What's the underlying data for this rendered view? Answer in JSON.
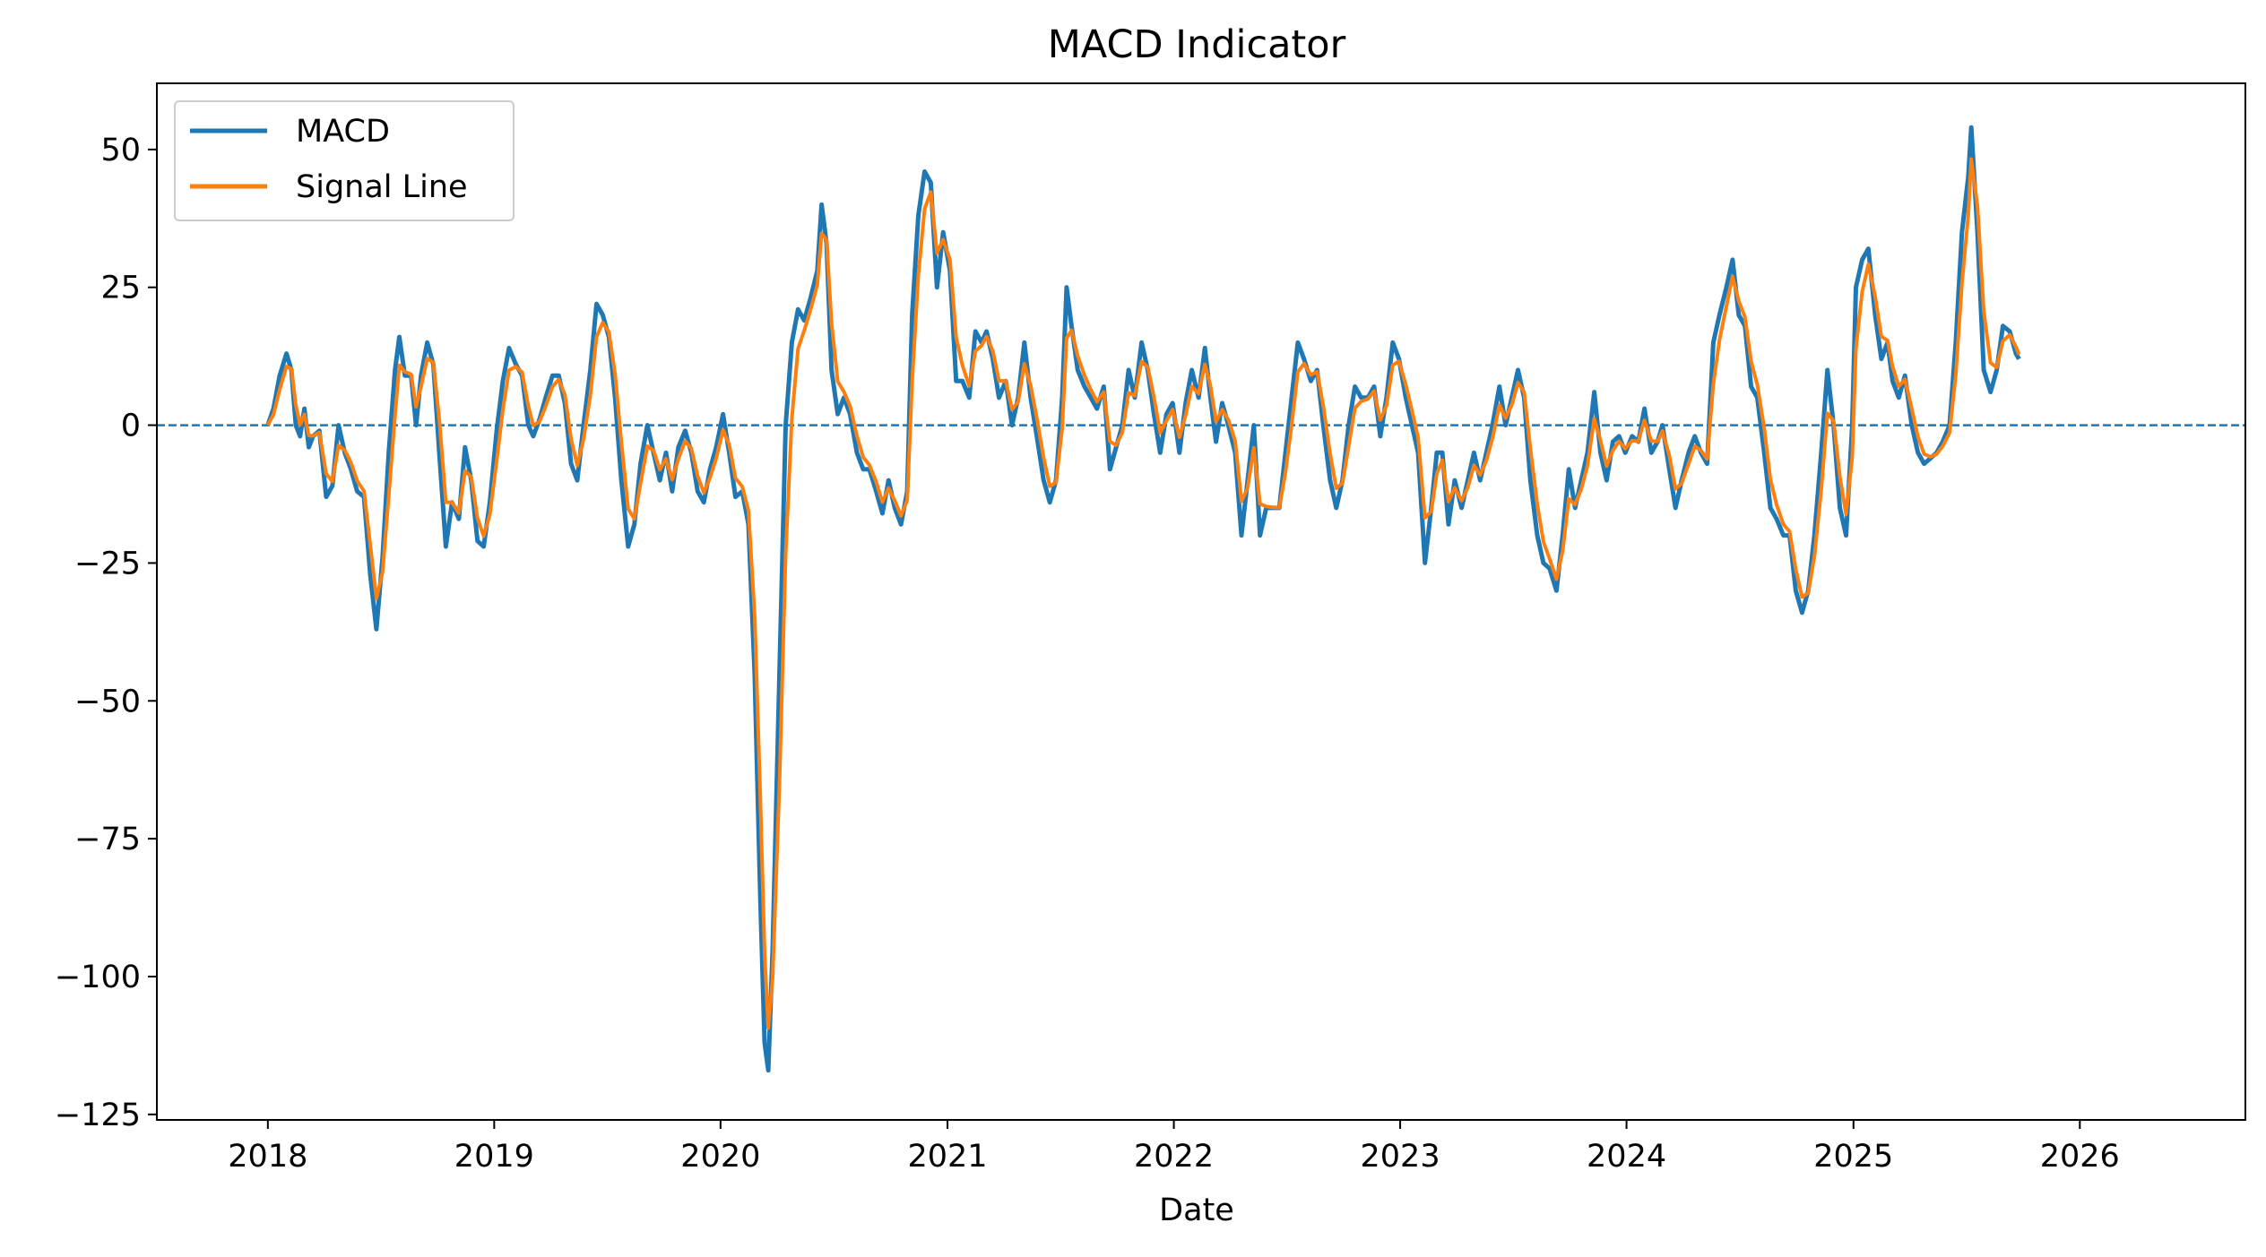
{
  "chart_data": {
    "type": "line",
    "title": "MACD Indicator",
    "xlabel": "Date",
    "ylabel": "",
    "x_tick_labels": [
      "2018",
      "2019",
      "2020",
      "2021",
      "2022",
      "2023",
      "2024",
      "2025",
      "2026"
    ],
    "y_tick_labels": [
      "50",
      "25",
      "0",
      "−25",
      "−50",
      "−75",
      "−100",
      "−125"
    ],
    "y_ticks": [
      50,
      25,
      0,
      -25,
      -50,
      -75,
      -100,
      -125
    ],
    "xlim": [
      "2017-07-06",
      "2026-09-25"
    ],
    "ylim": [
      -126,
      62
    ],
    "grid": false,
    "legend_position": "upper-left",
    "reference_line": {
      "y": 0,
      "style": "dashed",
      "color": "#1f77b4"
    },
    "series": [
      {
        "name": "MACD",
        "color": "#1f77b4",
        "points": [
          [
            "2018-01-01",
            0
          ],
          [
            "2018-01-10",
            3
          ],
          [
            "2018-01-20",
            9
          ],
          [
            "2018-01-31",
            13
          ],
          [
            "2018-02-08",
            10
          ],
          [
            "2018-02-15",
            0
          ],
          [
            "2018-02-22",
            -2
          ],
          [
            "2018-03-01",
            3
          ],
          [
            "2018-03-08",
            -4
          ],
          [
            "2018-03-15",
            -2
          ],
          [
            "2018-03-25",
            -1
          ],
          [
            "2018-04-05",
            -13
          ],
          [
            "2018-04-15",
            -11
          ],
          [
            "2018-04-25",
            0
          ],
          [
            "2018-05-05",
            -5
          ],
          [
            "2018-05-15",
            -8
          ],
          [
            "2018-05-25",
            -12
          ],
          [
            "2018-06-05",
            -13
          ],
          [
            "2018-06-15",
            -27
          ],
          [
            "2018-06-25",
            -37
          ],
          [
            "2018-07-05",
            -24
          ],
          [
            "2018-07-15",
            -5
          ],
          [
            "2018-07-25",
            10
          ],
          [
            "2018-08-01",
            16
          ],
          [
            "2018-08-10",
            9
          ],
          [
            "2018-08-20",
            9
          ],
          [
            "2018-08-28",
            0
          ],
          [
            "2018-09-05",
            9
          ],
          [
            "2018-09-15",
            15
          ],
          [
            "2018-09-25",
            11
          ],
          [
            "2018-10-05",
            -6
          ],
          [
            "2018-10-15",
            -22
          ],
          [
            "2018-10-25",
            -14
          ],
          [
            "2018-11-05",
            -17
          ],
          [
            "2018-11-15",
            -4
          ],
          [
            "2018-11-25",
            -10
          ],
          [
            "2018-12-05",
            -21
          ],
          [
            "2018-12-15",
            -22
          ],
          [
            "2018-12-25",
            -14
          ],
          [
            "2019-01-05",
            -1
          ],
          [
            "2019-01-15",
            8
          ],
          [
            "2019-01-25",
            14
          ],
          [
            "2019-02-05",
            11
          ],
          [
            "2019-02-15",
            9
          ],
          [
            "2019-02-25",
            0
          ],
          [
            "2019-03-05",
            -2
          ],
          [
            "2019-03-15",
            1
          ],
          [
            "2019-03-25",
            5
          ],
          [
            "2019-04-05",
            9
          ],
          [
            "2019-04-15",
            9
          ],
          [
            "2019-04-25",
            4
          ],
          [
            "2019-05-05",
            -7
          ],
          [
            "2019-05-15",
            -10
          ],
          [
            "2019-05-25",
            0
          ],
          [
            "2019-06-05",
            10
          ],
          [
            "2019-06-15",
            22
          ],
          [
            "2019-06-25",
            20
          ],
          [
            "2019-07-05",
            16
          ],
          [
            "2019-07-15",
            5
          ],
          [
            "2019-07-25",
            -10
          ],
          [
            "2019-08-05",
            -22
          ],
          [
            "2019-08-15",
            -18
          ],
          [
            "2019-08-25",
            -7
          ],
          [
            "2019-09-05",
            0
          ],
          [
            "2019-09-15",
            -5
          ],
          [
            "2019-09-25",
            -10
          ],
          [
            "2019-10-05",
            -5
          ],
          [
            "2019-10-15",
            -12
          ],
          [
            "2019-10-25",
            -4
          ],
          [
            "2019-11-05",
            -1
          ],
          [
            "2019-11-15",
            -5
          ],
          [
            "2019-11-25",
            -12
          ],
          [
            "2019-12-05",
            -14
          ],
          [
            "2019-12-15",
            -8
          ],
          [
            "2019-12-25",
            -4
          ],
          [
            "2020-01-05",
            2
          ],
          [
            "2020-01-15",
            -5
          ],
          [
            "2020-01-25",
            -13
          ],
          [
            "2020-02-05",
            -12
          ],
          [
            "2020-02-15",
            -18
          ],
          [
            "2020-02-25",
            -45
          ],
          [
            "2020-03-05",
            -85
          ],
          [
            "2020-03-12",
            -112
          ],
          [
            "2020-03-18",
            -117
          ],
          [
            "2020-03-25",
            -95
          ],
          [
            "2020-04-05",
            -45
          ],
          [
            "2020-04-15",
            0
          ],
          [
            "2020-04-25",
            15
          ],
          [
            "2020-05-05",
            21
          ],
          [
            "2020-05-15",
            19
          ],
          [
            "2020-05-25",
            23
          ],
          [
            "2020-06-05",
            28
          ],
          [
            "2020-06-12",
            40
          ],
          [
            "2020-06-20",
            33
          ],
          [
            "2020-06-28",
            10
          ],
          [
            "2020-07-08",
            2
          ],
          [
            "2020-07-18",
            5
          ],
          [
            "2020-07-28",
            2
          ],
          [
            "2020-08-08",
            -5
          ],
          [
            "2020-08-18",
            -8
          ],
          [
            "2020-08-28",
            -8
          ],
          [
            "2020-09-08",
            -12
          ],
          [
            "2020-09-18",
            -16
          ],
          [
            "2020-09-28",
            -10
          ],
          [
            "2020-10-08",
            -15
          ],
          [
            "2020-10-18",
            -18
          ],
          [
            "2020-10-28",
            -12
          ],
          [
            "2020-11-05",
            20
          ],
          [
            "2020-11-15",
            38
          ],
          [
            "2020-11-25",
            46
          ],
          [
            "2020-12-05",
            44
          ],
          [
            "2020-12-15",
            25
          ],
          [
            "2020-12-25",
            35
          ],
          [
            "2021-01-05",
            28
          ],
          [
            "2021-01-15",
            8
          ],
          [
            "2021-01-25",
            8
          ],
          [
            "2021-02-05",
            5
          ],
          [
            "2021-02-15",
            17
          ],
          [
            "2021-02-25",
            15
          ],
          [
            "2021-03-05",
            17
          ],
          [
            "2021-03-15",
            12
          ],
          [
            "2021-03-25",
            5
          ],
          [
            "2021-04-05",
            8
          ],
          [
            "2021-04-15",
            0
          ],
          [
            "2021-04-25",
            5
          ],
          [
            "2021-05-05",
            15
          ],
          [
            "2021-05-15",
            5
          ],
          [
            "2021-05-25",
            -2
          ],
          [
            "2021-06-05",
            -10
          ],
          [
            "2021-06-15",
            -14
          ],
          [
            "2021-06-25",
            -10
          ],
          [
            "2021-07-05",
            5
          ],
          [
            "2021-07-12",
            25
          ],
          [
            "2021-07-20",
            18
          ],
          [
            "2021-07-30",
            10
          ],
          [
            "2021-08-10",
            7
          ],
          [
            "2021-08-20",
            5
          ],
          [
            "2021-08-30",
            3
          ],
          [
            "2021-09-10",
            7
          ],
          [
            "2021-09-20",
            -8
          ],
          [
            "2021-09-30",
            -4
          ],
          [
            "2021-10-10",
            0
          ],
          [
            "2021-10-20",
            10
          ],
          [
            "2021-10-30",
            5
          ],
          [
            "2021-11-10",
            15
          ],
          [
            "2021-11-20",
            10
          ],
          [
            "2021-11-30",
            2
          ],
          [
            "2021-12-10",
            -5
          ],
          [
            "2021-12-20",
            2
          ],
          [
            "2021-12-30",
            4
          ],
          [
            "2022-01-10",
            -5
          ],
          [
            "2022-01-20",
            4
          ],
          [
            "2022-01-30",
            10
          ],
          [
            "2022-02-10",
            5
          ],
          [
            "2022-02-20",
            14
          ],
          [
            "2022-03-01",
            5
          ],
          [
            "2022-03-10",
            -3
          ],
          [
            "2022-03-20",
            4
          ],
          [
            "2022-03-30",
            0
          ],
          [
            "2022-04-10",
            -5
          ],
          [
            "2022-04-20",
            -20
          ],
          [
            "2022-04-30",
            -10
          ],
          [
            "2022-05-10",
            0
          ],
          [
            "2022-05-20",
            -20
          ],
          [
            "2022-05-30",
            -15
          ],
          [
            "2022-06-10",
            -15
          ],
          [
            "2022-06-20",
            -15
          ],
          [
            "2022-06-30",
            -5
          ],
          [
            "2022-07-10",
            5
          ],
          [
            "2022-07-20",
            15
          ],
          [
            "2022-07-30",
            12
          ],
          [
            "2022-08-10",
            8
          ],
          [
            "2022-08-20",
            10
          ],
          [
            "2022-08-30",
            0
          ],
          [
            "2022-09-10",
            -10
          ],
          [
            "2022-09-20",
            -15
          ],
          [
            "2022-09-30",
            -10
          ],
          [
            "2022-10-10",
            0
          ],
          [
            "2022-10-20",
            7
          ],
          [
            "2022-10-30",
            5
          ],
          [
            "2022-11-10",
            5
          ],
          [
            "2022-11-20",
            7
          ],
          [
            "2022-11-30",
            -2
          ],
          [
            "2022-12-10",
            5
          ],
          [
            "2022-12-20",
            15
          ],
          [
            "2022-12-30",
            12
          ],
          [
            "2023-01-10",
            5
          ],
          [
            "2023-01-20",
            0
          ],
          [
            "2023-01-30",
            -5
          ],
          [
            "2023-02-10",
            -25
          ],
          [
            "2023-02-20",
            -15
          ],
          [
            "2023-03-01",
            -5
          ],
          [
            "2023-03-10",
            -5
          ],
          [
            "2023-03-20",
            -18
          ],
          [
            "2023-03-30",
            -10
          ],
          [
            "2023-04-10",
            -15
          ],
          [
            "2023-04-20",
            -10
          ],
          [
            "2023-04-30",
            -5
          ],
          [
            "2023-05-10",
            -10
          ],
          [
            "2023-05-20",
            -5
          ],
          [
            "2023-05-30",
            0
          ],
          [
            "2023-06-10",
            7
          ],
          [
            "2023-06-20",
            0
          ],
          [
            "2023-06-30",
            5
          ],
          [
            "2023-07-10",
            10
          ],
          [
            "2023-07-20",
            5
          ],
          [
            "2023-07-30",
            -10
          ],
          [
            "2023-08-10",
            -20
          ],
          [
            "2023-08-20",
            -25
          ],
          [
            "2023-08-30",
            -26
          ],
          [
            "2023-09-10",
            -30
          ],
          [
            "2023-09-20",
            -20
          ],
          [
            "2023-09-30",
            -8
          ],
          [
            "2023-10-10",
            -15
          ],
          [
            "2023-10-20",
            -10
          ],
          [
            "2023-10-30",
            -5
          ],
          [
            "2023-11-10",
            6
          ],
          [
            "2023-11-20",
            -5
          ],
          [
            "2023-11-30",
            -10
          ],
          [
            "2023-12-10",
            -3
          ],
          [
            "2023-12-20",
            -2
          ],
          [
            "2023-12-30",
            -5
          ],
          [
            "2024-01-10",
            -2
          ],
          [
            "2024-01-20",
            -3
          ],
          [
            "2024-01-30",
            3
          ],
          [
            "2024-02-10",
            -5
          ],
          [
            "2024-02-20",
            -3
          ],
          [
            "2024-02-28",
            0
          ],
          [
            "2024-03-10",
            -8
          ],
          [
            "2024-03-20",
            -15
          ],
          [
            "2024-03-30",
            -10
          ],
          [
            "2024-04-10",
            -5
          ],
          [
            "2024-04-20",
            -2
          ],
          [
            "2024-04-30",
            -5
          ],
          [
            "2024-05-10",
            -7
          ],
          [
            "2024-05-20",
            15
          ],
          [
            "2024-05-30",
            20
          ],
          [
            "2024-06-10",
            25
          ],
          [
            "2024-06-20",
            30
          ],
          [
            "2024-06-30",
            20
          ],
          [
            "2024-07-10",
            18
          ],
          [
            "2024-07-20",
            7
          ],
          [
            "2024-07-30",
            5
          ],
          [
            "2024-08-10",
            -5
          ],
          [
            "2024-08-20",
            -15
          ],
          [
            "2024-08-30",
            -17
          ],
          [
            "2024-09-10",
            -20
          ],
          [
            "2024-09-20",
            -20
          ],
          [
            "2024-09-30",
            -30
          ],
          [
            "2024-10-10",
            -34
          ],
          [
            "2024-10-20",
            -30
          ],
          [
            "2024-10-30",
            -20
          ],
          [
            "2024-11-10",
            -5
          ],
          [
            "2024-11-20",
            10
          ],
          [
            "2024-11-30",
            0
          ],
          [
            "2024-12-10",
            -15
          ],
          [
            "2024-12-20",
            -20
          ],
          [
            "2024-12-30",
            0
          ],
          [
            "2025-01-05",
            25
          ],
          [
            "2025-01-15",
            30
          ],
          [
            "2025-01-25",
            32
          ],
          [
            "2025-02-05",
            20
          ],
          [
            "2025-02-15",
            12
          ],
          [
            "2025-02-25",
            15
          ],
          [
            "2025-03-05",
            8
          ],
          [
            "2025-03-15",
            5
          ],
          [
            "2025-03-25",
            9
          ],
          [
            "2025-04-05",
            0
          ],
          [
            "2025-04-15",
            -5
          ],
          [
            "2025-04-25",
            -7
          ],
          [
            "2025-05-05",
            -6
          ],
          [
            "2025-05-15",
            -5
          ],
          [
            "2025-05-25",
            -3
          ],
          [
            "2025-06-05",
            0
          ],
          [
            "2025-06-15",
            15
          ],
          [
            "2025-06-25",
            35
          ],
          [
            "2025-07-05",
            45
          ],
          [
            "2025-07-10",
            54
          ],
          [
            "2025-07-20",
            35
          ],
          [
            "2025-07-30",
            10
          ],
          [
            "2025-08-10",
            6
          ],
          [
            "2025-08-20",
            10
          ],
          [
            "2025-08-30",
            18
          ],
          [
            "2025-09-10",
            17
          ],
          [
            "2025-09-20",
            13
          ],
          [
            "2025-09-25",
            12
          ]
        ]
      },
      {
        "name": "Signal Line",
        "color": "#ff7f0e",
        "points": []
      }
    ]
  }
}
